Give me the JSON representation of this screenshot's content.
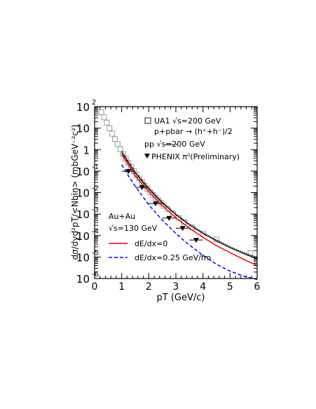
{
  "chart_data": {
    "type": "line",
    "log_y": true,
    "xlim": [
      0,
      6
    ],
    "ylim": [
      1e-06,
      100
    ],
    "grid": false,
    "legend_placement": "top-right and lower-left",
    "xlabel": "pT (GeV/c)",
    "ylabel": "dσ/dyd²pT/<Nbin> (mbGeV⁻²c²)",
    "x_ticks": [
      0,
      1,
      2,
      3,
      4,
      5,
      6
    ],
    "y_tick_labels": [
      {
        "value": 100,
        "mantissa": "10",
        "exp": "2"
      },
      {
        "value": 10,
        "mantissa": "10",
        "exp": ""
      },
      {
        "value": 1,
        "mantissa": "1",
        "exp": ""
      },
      {
        "value": 0.1,
        "mantissa": "10",
        "exp": "-1"
      },
      {
        "value": 0.01,
        "mantissa": "10",
        "exp": "-2"
      },
      {
        "value": 0.001,
        "mantissa": "10",
        "exp": "-3"
      },
      {
        "value": 0.0001,
        "mantissa": "10",
        "exp": "-4"
      },
      {
        "value": 1e-05,
        "mantissa": "10",
        "exp": "-5"
      },
      {
        "value": 1e-06,
        "mantissa": "10",
        "exp": "-6"
      }
    ],
    "legend": {
      "ua1": "UA1 √s=200 GeV",
      "ua1_sub": "p+pbar → (h⁺+h⁻)/2",
      "pp": "pp √s=200 GeV",
      "phenix": "PHENIX π⁰(Preliminary)",
      "system": "Au+Au",
      "energy": "√s=130 GeV",
      "red_line": "dE/dx=0",
      "blue_line": "dE/dx=0.25 GeV/fm"
    },
    "colors": {
      "red": "#ff0000",
      "blue": "#0000ff",
      "black": "#000000",
      "ua1": "#9a9a9a"
    },
    "series": [
      {
        "name": "UA1 √s=200 GeV",
        "style": "open-square",
        "points": [
          [
            0.25,
            55
          ],
          [
            0.35,
            32
          ],
          [
            0.45,
            18
          ],
          [
            0.55,
            10
          ],
          [
            0.65,
            5.5
          ],
          [
            0.75,
            3.1
          ],
          [
            0.85,
            1.8
          ],
          [
            0.95,
            1.05
          ],
          [
            1.05,
            0.62
          ],
          [
            1.15,
            0.38
          ],
          [
            1.25,
            0.24
          ],
          [
            1.35,
            0.155
          ],
          [
            1.45,
            0.1
          ],
          [
            1.55,
            0.066
          ],
          [
            1.65,
            0.045
          ],
          [
            1.75,
            0.031
          ],
          [
            1.85,
            0.021
          ],
          [
            1.95,
            0.015
          ],
          [
            2.05,
            0.0106
          ],
          [
            2.15,
            0.0077
          ],
          [
            2.25,
            0.0057
          ],
          [
            2.35,
            0.0043
          ],
          [
            2.45,
            0.0032
          ],
          [
            2.55,
            0.0024
          ],
          [
            2.7,
            0.0017
          ],
          [
            2.9,
            0.00105
          ],
          [
            3.1,
            0.00066
          ],
          [
            3.3,
            0.00043
          ],
          [
            3.6,
            0.00024
          ],
          [
            4.0,
            0.000125
          ],
          [
            4.5,
            6.5e-05
          ],
          [
            5.75,
            1.5e-05
          ]
        ]
      },
      {
        "name": "pp √s=200 GeV",
        "style": "dotted",
        "points": [
          [
            1.0,
            0.85
          ],
          [
            1.5,
            0.09
          ],
          [
            2.0,
            0.016
          ],
          [
            2.5,
            0.0036
          ],
          [
            3.0,
            0.001
          ],
          [
            3.5,
            0.00034
          ],
          [
            4.0,
            0.000135
          ],
          [
            4.5,
            6.2e-05
          ],
          [
            5.0,
            3e-05
          ],
          [
            5.5,
            1.6e-05
          ],
          [
            6.0,
            9.5e-06
          ]
        ]
      },
      {
        "name": "",
        "style": "solid-black",
        "points": [
          [
            1.0,
            0.75
          ],
          [
            1.5,
            0.08
          ],
          [
            2.0,
            0.0145
          ],
          [
            2.5,
            0.0033
          ],
          [
            3.0,
            0.00093
          ],
          [
            3.5,
            0.00031
          ],
          [
            4.0,
            0.000125
          ],
          [
            4.5,
            5.6e-05
          ],
          [
            5.0,
            2.7e-05
          ],
          [
            5.5,
            1.45e-05
          ],
          [
            6.0,
            8.2e-06
          ]
        ]
      },
      {
        "name": "dE/dx=0",
        "style": "solid-red",
        "points": [
          [
            1.0,
            0.6
          ],
          [
            1.5,
            0.06
          ],
          [
            2.0,
            0.011
          ],
          [
            2.5,
            0.0025
          ],
          [
            3.0,
            0.00068
          ],
          [
            3.5,
            0.00022
          ],
          [
            4.0,
            8.2e-05
          ],
          [
            4.5,
            3.4e-05
          ],
          [
            5.0,
            1.6e-05
          ],
          [
            5.5,
            7.8e-06
          ],
          [
            6.0,
            4e-06
          ]
        ]
      },
      {
        "name": "dE/dx=0.25 GeV/fm",
        "style": "dashed-blue",
        "points": [
          [
            1.0,
            0.2
          ],
          [
            1.25,
            0.06
          ],
          [
            1.5,
            0.02
          ],
          [
            2.0,
            0.0027
          ],
          [
            2.5,
            0.00052
          ],
          [
            3.0,
            0.000125
          ],
          [
            3.5,
            3.6e-05
          ],
          [
            4.0,
            1.2e-05
          ],
          [
            4.5,
            4.6e-06
          ],
          [
            5.0,
            2.2e-06
          ],
          [
            5.5,
            1.3e-06
          ],
          [
            6.0,
            9e-07
          ]
        ]
      },
      {
        "name": "PHENIX π⁰(Preliminary)",
        "style": "filled-down-triangle",
        "x_err": 0.25,
        "points": [
          [
            1.25,
            0.098
          ],
          [
            1.75,
            0.0175
          ],
          [
            2.25,
            0.0031
          ],
          [
            2.75,
            0.00065
          ],
          [
            3.25,
            0.00022
          ],
          [
            3.75,
            6.2e-05
          ]
        ]
      }
    ]
  }
}
